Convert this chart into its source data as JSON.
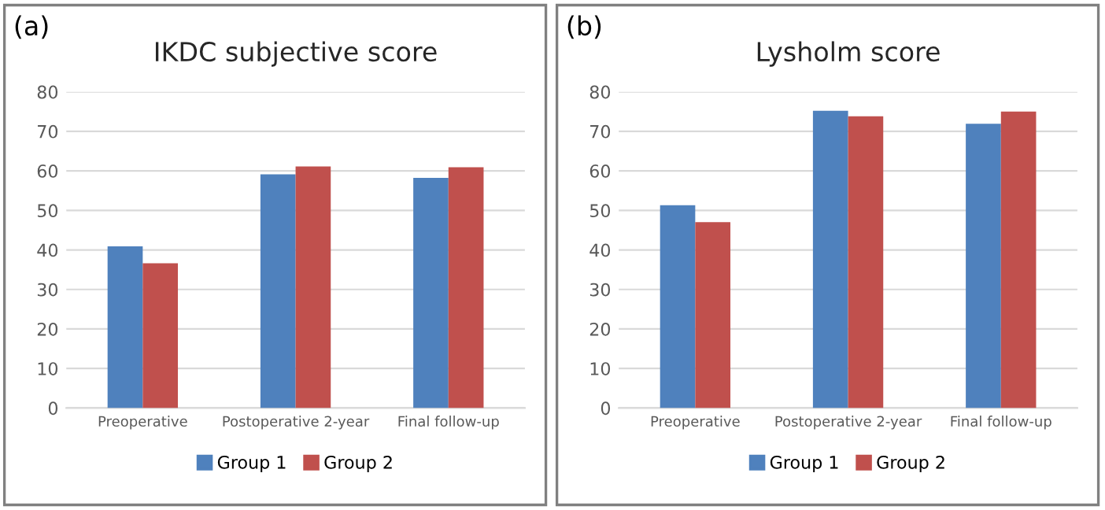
{
  "chart_data": [
    {
      "type": "bar",
      "title": "IKDC subjective score",
      "annotations": [
        "(a)"
      ],
      "categories": [
        "Preoperative",
        "Postoperative 2-year",
        "Final follow-up"
      ],
      "series": [
        {
          "name": "Group 1",
          "color": "#4f81bd",
          "values": [
            40.9,
            59.1,
            58.2
          ]
        },
        {
          "name": "Group 2",
          "color": "#c0504d",
          "values": [
            36.6,
            61.1,
            60.9
          ]
        }
      ],
      "ylim": [
        0,
        80
      ],
      "yticks": [
        0,
        10,
        20,
        30,
        40,
        50,
        60,
        70,
        80
      ],
      "grid": "y",
      "legend": "bottom"
    },
    {
      "type": "bar",
      "title": "Lysholm score",
      "annotations": [
        "(b)"
      ],
      "categories": [
        "Preoperative",
        "Postoperative 2-year",
        "Final follow-up"
      ],
      "series": [
        {
          "name": "Group 1",
          "color": "#4f81bd",
          "values": [
            51.3,
            75.2,
            71.9
          ]
        },
        {
          "name": "Group 2",
          "color": "#c0504d",
          "values": [
            47.0,
            73.8,
            75.0
          ]
        }
      ],
      "ylim": [
        0,
        80
      ],
      "yticks": [
        0,
        10,
        20,
        30,
        40,
        50,
        60,
        70,
        80
      ],
      "grid": "y",
      "legend": "bottom"
    }
  ]
}
